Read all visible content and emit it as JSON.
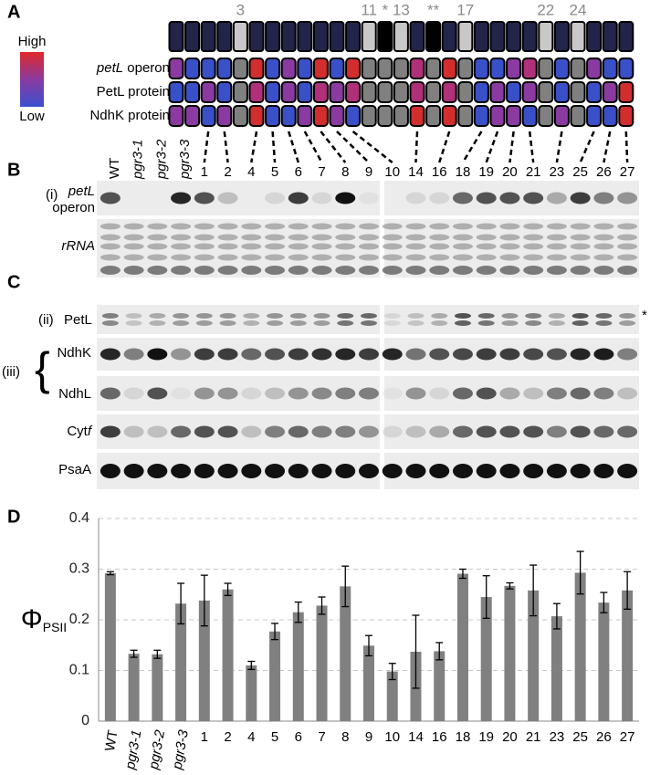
{
  "figure": {
    "panel_labels": [
      "A",
      "B",
      "C",
      "D"
    ]
  },
  "heatmap": {
    "legend": {
      "high": "High",
      "low": "Low"
    },
    "top_labels": [
      "3",
      "11",
      "*",
      "13",
      "**",
      "17",
      "22",
      "24"
    ],
    "top_colors": [
      "#22244a",
      "#22244a",
      "#22244a",
      "#22244a",
      "#c8c8c8",
      "#22244a",
      "#22244a",
      "#22244a",
      "#22244a",
      "#22244a",
      "#22244a",
      "#22244a",
      "#c8c8c8",
      "#000000",
      "#c8c8c8",
      "#22244a",
      "#000000",
      "#22244a",
      "#c8c8c8",
      "#22244a",
      "#22244a",
      "#22244a",
      "#22244a",
      "#c8c8c8",
      "#22244a",
      "#c8c8c8",
      "#22244a",
      "#22244a",
      "#22244a"
    ],
    "rows": [
      {
        "label_italic": "petL",
        "label": "operon",
        "colors": [
          "#8a3aa0",
          "#3a50c8",
          "#3a50c8",
          "#3a50c8",
          "#808080",
          "#d22e2e",
          "#3a50c8",
          "#8a3aa0",
          "#3a50c8",
          "#d22e2e",
          "#3a50c8",
          "#d22e2e",
          "#808080",
          "#808080",
          "#808080",
          "#b0307a",
          "#808080",
          "#d22e2e",
          "#808080",
          "#3a50c8",
          "#3a50c8",
          "#8a3aa0",
          "#b0307a",
          "#808080",
          "#3a50c8",
          "#808080",
          "#8a3aa0",
          "#3a50c8",
          "#3a50c8"
        ]
      },
      {
        "label": "PetL protein",
        "colors": [
          "#3a50c8",
          "#3a50c8",
          "#8a3aa0",
          "#3a50c8",
          "#808080",
          "#b0307a",
          "#3a50c8",
          "#8a3aa0",
          "#3a50c8",
          "#b0307a",
          "#8a3aa0",
          "#b0307a",
          "#808080",
          "#808080",
          "#808080",
          "#b0307a",
          "#808080",
          "#b0307a",
          "#808080",
          "#3a50c8",
          "#8a3aa0",
          "#3a50c8",
          "#8a3aa0",
          "#808080",
          "#3a50c8",
          "#808080",
          "#3a50c8",
          "#8a3aa0",
          "#d22e2e"
        ]
      },
      {
        "label": "NdhK protein",
        "colors": [
          "#8a3aa0",
          "#8a3aa0",
          "#3a50c8",
          "#8a3aa0",
          "#808080",
          "#d22e2e",
          "#3a50c8",
          "#3a50c8",
          "#8a3aa0",
          "#d22e2e",
          "#8a3aa0",
          "#3a50c8",
          "#808080",
          "#808080",
          "#808080",
          "#d22e2e",
          "#808080",
          "#d22e2e",
          "#808080",
          "#3a50c8",
          "#8a3aa0",
          "#8a3aa0",
          "#3a50c8",
          "#808080",
          "#8a3aa0",
          "#808080",
          "#3a50c8",
          "#3a50c8",
          "#d22e2e"
        ]
      }
    ]
  },
  "blots": {
    "rna": {
      "roman": "(i)",
      "gene_italic": "petL",
      "gene": "operon",
      "loading": "rRNA"
    },
    "protein": {
      "roman_ii": "(ii)",
      "petl": "PetL",
      "asterisk": "*",
      "roman_iii": "(iii)",
      "ndhk": "NdhK",
      "ndhl": "NdhL",
      "cyt": "Cyt",
      "cyt_italic": "f",
      "psaa": "PsaA"
    }
  },
  "chart_data": {
    "type": "bar",
    "ylabel": "Φ",
    "ylabel_sub": "PSII",
    "categories": [
      "WT",
      "pgr3-1",
      "pgr3-2",
      "pgr3-3",
      "1",
      "2",
      "4",
      "5",
      "6",
      "7",
      "8",
      "9",
      "10",
      "14",
      "16",
      "18",
      "19",
      "20",
      "21",
      "23",
      "25",
      "26",
      "27"
    ],
    "values": [
      0.292,
      0.133,
      0.132,
      0.232,
      0.238,
      0.26,
      0.11,
      0.177,
      0.215,
      0.228,
      0.266,
      0.149,
      0.098,
      0.137,
      0.138,
      0.291,
      0.245,
      0.267,
      0.258,
      0.207,
      0.293,
      0.234,
      0.258
    ],
    "errors": [
      0.003,
      0.007,
      0.008,
      0.04,
      0.05,
      0.012,
      0.008,
      0.016,
      0.02,
      0.017,
      0.04,
      0.02,
      0.016,
      0.072,
      0.017,
      0.009,
      0.042,
      0.006,
      0.05,
      0.025,
      0.042,
      0.02,
      0.037
    ],
    "color": "#808080",
    "ylim": [
      0,
      0.4
    ],
    "yticks": [
      0,
      0.1,
      0.2,
      0.3,
      0.4
    ],
    "grid": true
  }
}
